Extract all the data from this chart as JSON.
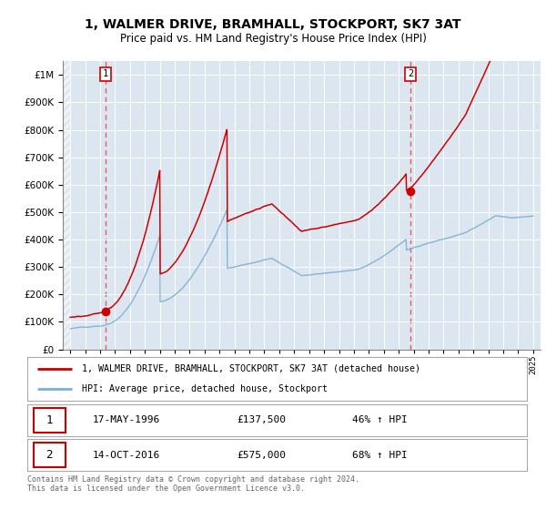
{
  "title": "1, WALMER DRIVE, BRAMHALL, STOCKPORT, SK7 3AT",
  "subtitle": "Price paid vs. HM Land Registry's House Price Index (HPI)",
  "sale1_label": "17-MAY-1996",
  "sale1_price": 137500,
  "sale1_pct": "46%",
  "sale1_x": 1996.375,
  "sale2_label": "14-OCT-2016",
  "sale2_price": 575000,
  "sale2_pct": "68%",
  "sale2_x": 2016.792,
  "legend_line1": "1, WALMER DRIVE, BRAMHALL, STOCKPORT, SK7 3AT (detached house)",
  "legend_line2": "HPI: Average price, detached house, Stockport",
  "footer": "Contains HM Land Registry data © Crown copyright and database right 2024.\nThis data is licensed under the Open Government Licence v3.0.",
  "line_color": "#cc0000",
  "hpi_color": "#7bafd4",
  "vline_color": "#e06060",
  "background_color": "#dce6f1",
  "plot_bg": "#ffffff",
  "ylim": [
    0,
    1050000
  ],
  "xlim_start": 1993.5,
  "xlim_end": 2025.5
}
